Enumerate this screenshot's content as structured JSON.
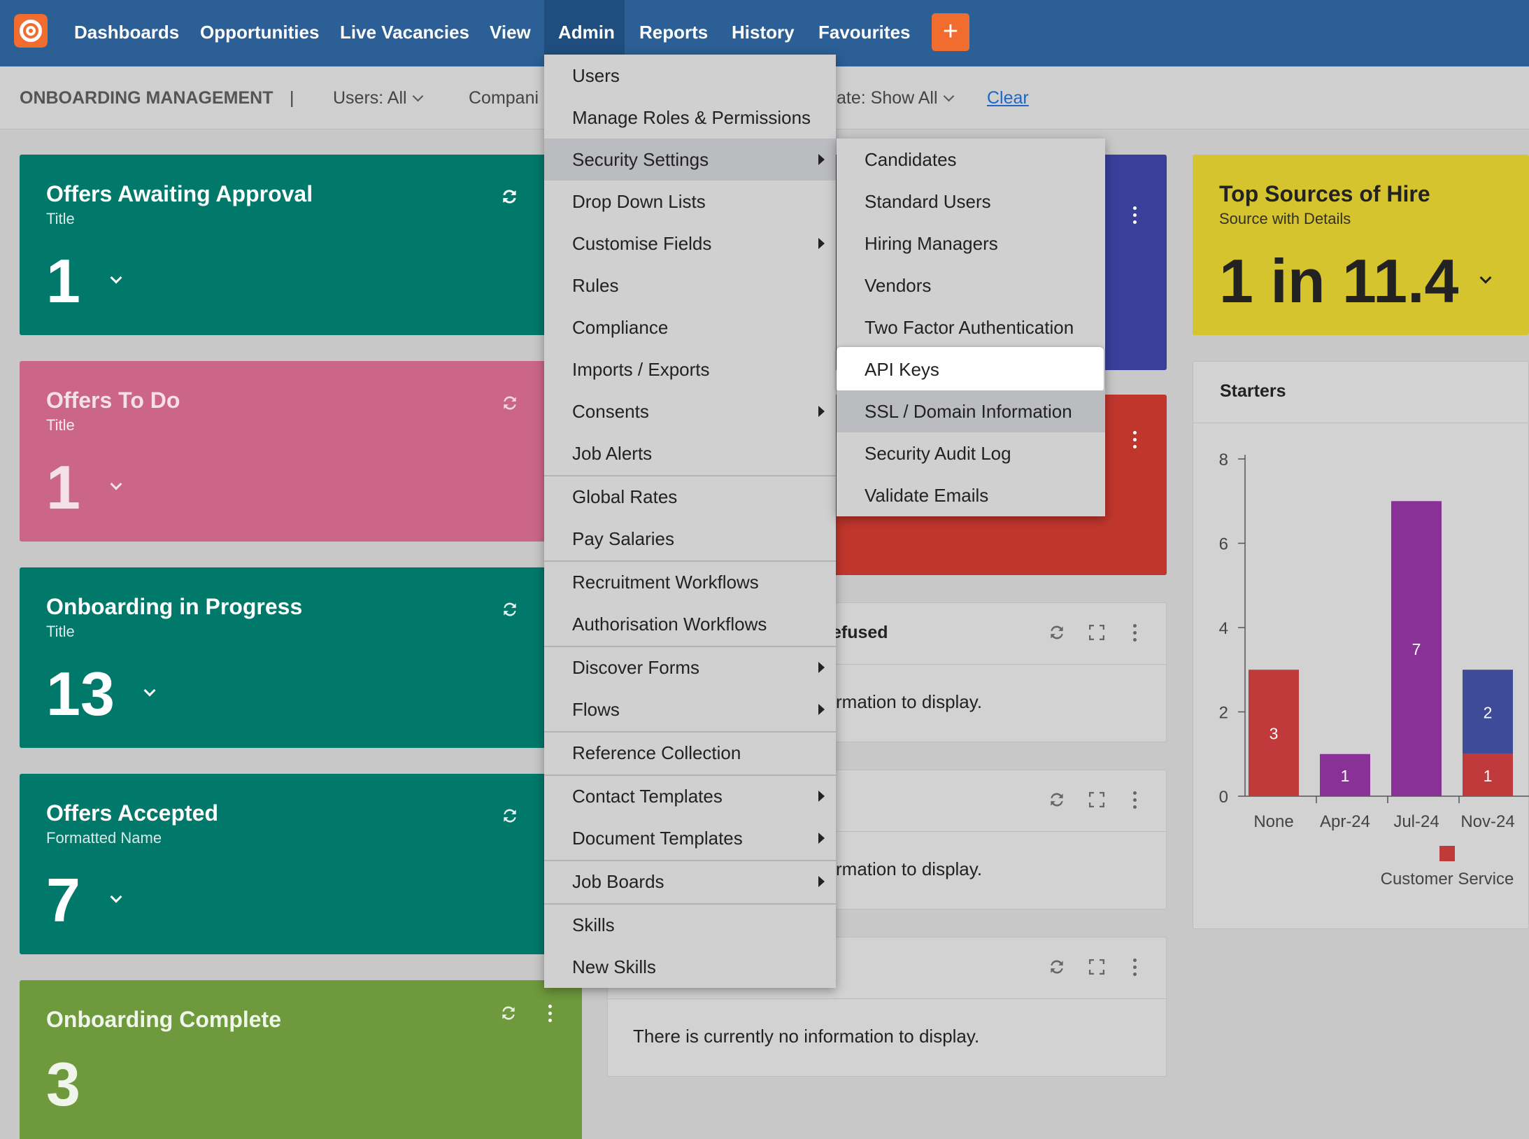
{
  "nav": {
    "items": [
      "Dashboards",
      "Opportunities",
      "Live Vacancies",
      "View",
      "Admin",
      "Reports",
      "History",
      "Favourites"
    ],
    "active": "Admin",
    "plus_label": "+"
  },
  "filterbar": {
    "title": "ONBOARDING MANAGEMENT",
    "separator": "|",
    "users": "Users: All",
    "companies": "Compani",
    "date": "ate: Show All",
    "clear": "Clear"
  },
  "cards": [
    {
      "title": "Offers Awaiting Approval",
      "subtitle": "Title",
      "value": "1",
      "color": "#00786a"
    },
    {
      "title": "Offers To Do",
      "subtitle": "Title",
      "value": "1",
      "color": "#cc6689"
    },
    {
      "title": "Onboarding in Progress",
      "subtitle": "Title",
      "value": "13",
      "color": "#00786a"
    },
    {
      "title": "Offers Accepted",
      "subtitle": "Formatted Name",
      "value": "7",
      "color": "#00786a"
    },
    {
      "title": "Onboarding Complete",
      "subtitle": "",
      "value": "3",
      "color": "#6e993c"
    }
  ],
  "top_sources": {
    "title": "Top Sources of Hire",
    "subtitle": "Source with Details",
    "value": "1 in 11.4",
    "color": "#d6c42e"
  },
  "panels": [
    {
      "title": "efused",
      "body": "rmation to display."
    },
    {
      "title": "",
      "body": "rmation to display."
    },
    {
      "title": "",
      "body": "There is currently no information to display."
    }
  ],
  "admin_menu": {
    "items": [
      {
        "label": "Users",
        "submenu": false
      },
      {
        "label": "Manage Roles & Permissions",
        "submenu": false
      },
      {
        "label": "Security Settings",
        "submenu": true,
        "highlighted": true
      },
      {
        "label": "Drop Down Lists",
        "submenu": false
      },
      {
        "label": "Customise Fields",
        "submenu": true
      },
      {
        "label": "Rules",
        "submenu": false
      },
      {
        "label": "Compliance",
        "submenu": false
      },
      {
        "label": "Imports / Exports",
        "submenu": false
      },
      {
        "label": "Consents",
        "submenu": true
      },
      {
        "label": "Job Alerts",
        "submenu": false
      },
      {
        "label": "Global Rates",
        "submenu": false
      },
      {
        "label": "Pay Salaries",
        "submenu": false
      },
      {
        "label": "Recruitment Workflows",
        "submenu": false
      },
      {
        "label": "Authorisation Workflows",
        "submenu": false
      },
      {
        "label": "Discover Forms",
        "submenu": true
      },
      {
        "label": "Flows",
        "submenu": true
      },
      {
        "label": "Reference Collection",
        "submenu": false
      },
      {
        "label": "Contact Templates",
        "submenu": true
      },
      {
        "label": "Document Templates",
        "submenu": true
      },
      {
        "label": "Job Boards",
        "submenu": true
      },
      {
        "label": "Skills",
        "submenu": false
      },
      {
        "label": "New Skills",
        "submenu": false
      }
    ]
  },
  "security_submenu": {
    "items": [
      "Candidates",
      "Standard Users",
      "Hiring Managers",
      "Vendors",
      "Two Factor Authentication",
      "API Keys",
      "SSL / Domain Information",
      "Security Audit Log",
      "Validate Emails"
    ],
    "selected": "API Keys",
    "hovered": "SSL / Domain Information"
  },
  "starters": {
    "title": "Starters"
  },
  "chart_data": {
    "type": "bar",
    "stacked": true,
    "categories": [
      "None",
      "Apr-24",
      "Jul-24",
      "Nov-24"
    ],
    "series": [
      {
        "name": "Customer Service",
        "color": "#c0393b",
        "values": [
          3,
          0,
          0,
          1
        ]
      },
      {
        "color": "#8a3197",
        "values": [
          0,
          1,
          7,
          0
        ]
      },
      {
        "color": "#3e4b99",
        "values": [
          0,
          0,
          0,
          2
        ]
      }
    ],
    "ylim": [
      0,
      8
    ],
    "yticks": [
      0,
      2,
      4,
      6,
      8
    ],
    "legend": {
      "label": "Customer Service",
      "color": "#c0393b",
      "position": "bottom"
    }
  }
}
